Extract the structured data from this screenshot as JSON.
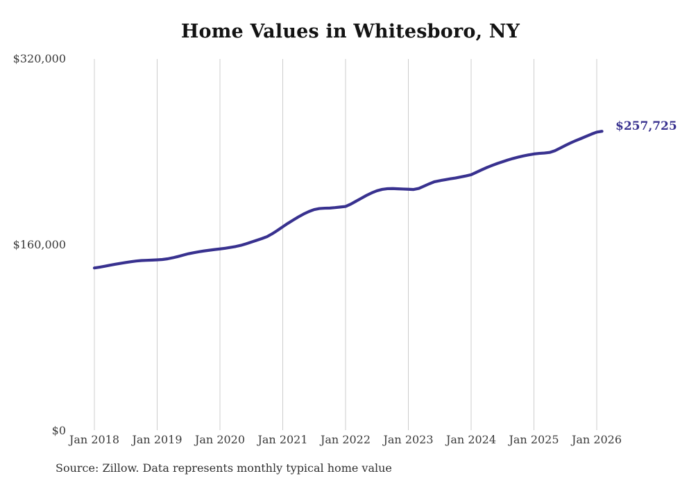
{
  "chart": {
    "title": "Home Values in Whitesboro, NY",
    "end_label": "$257,725",
    "source_note": "Source: Zillow. Data represents monthly typical home value",
    "line_color": "#38318f",
    "end_label_color": "#38318f",
    "grid_color": "#cccccc",
    "title_color": "#131313",
    "axis_label_color": "#3a3a3a",
    "background_color": "#ffffff"
  },
  "chart_data": {
    "type": "line",
    "title": "Home Values in Whitesboro, NY",
    "xlabel": "",
    "ylabel": "",
    "ylim": [
      0,
      320000
    ],
    "y_ticks": [
      0,
      160000,
      320000
    ],
    "y_tick_labels": [
      "$0",
      "$160,000",
      "$320,000"
    ],
    "x_tick_labels": [
      "Jan 2018",
      "Jan 2019",
      "Jan 2020",
      "Jan 2021",
      "Jan 2022",
      "Jan 2023",
      "Jan 2024",
      "Jan 2025",
      "Jan 2026"
    ],
    "grid": "vertical-only",
    "legend": "none",
    "series_name": "Typical home value (monthly)",
    "annotation": {
      "text": "$257,725",
      "x": "2026-02",
      "value": 257725
    },
    "x": [
      "2018-01",
      "2018-02",
      "2018-03",
      "2018-04",
      "2018-05",
      "2018-06",
      "2018-07",
      "2018-08",
      "2018-09",
      "2018-10",
      "2018-11",
      "2018-12",
      "2019-01",
      "2019-02",
      "2019-03",
      "2019-04",
      "2019-05",
      "2019-06",
      "2019-07",
      "2019-08",
      "2019-09",
      "2019-10",
      "2019-11",
      "2019-12",
      "2020-01",
      "2020-02",
      "2020-03",
      "2020-04",
      "2020-05",
      "2020-06",
      "2020-07",
      "2020-08",
      "2020-09",
      "2020-10",
      "2020-11",
      "2020-12",
      "2021-01",
      "2021-02",
      "2021-03",
      "2021-04",
      "2021-05",
      "2021-06",
      "2021-07",
      "2021-08",
      "2021-09",
      "2021-10",
      "2021-11",
      "2021-12",
      "2022-01",
      "2022-02",
      "2022-03",
      "2022-04",
      "2022-05",
      "2022-06",
      "2022-07",
      "2022-08",
      "2022-09",
      "2022-10",
      "2022-11",
      "2022-12",
      "2023-01",
      "2023-02",
      "2023-03",
      "2023-04",
      "2023-05",
      "2023-06",
      "2023-07",
      "2023-08",
      "2023-09",
      "2023-10",
      "2023-11",
      "2023-12",
      "2024-01",
      "2024-02",
      "2024-03",
      "2024-04",
      "2024-05",
      "2024-06",
      "2024-07",
      "2024-08",
      "2024-09",
      "2024-10",
      "2024-11",
      "2024-12",
      "2025-01",
      "2025-02",
      "2025-03",
      "2025-04",
      "2025-05",
      "2025-06",
      "2025-07",
      "2025-08",
      "2025-09",
      "2025-10",
      "2025-11",
      "2025-12",
      "2026-01",
      "2026-02"
    ],
    "values": [
      140000,
      140700,
      141500,
      142400,
      143200,
      144000,
      144700,
      145400,
      146000,
      146400,
      146600,
      146800,
      147000,
      147300,
      147900,
      148800,
      149900,
      151100,
      152300,
      153200,
      154000,
      154700,
      155300,
      155900,
      156400,
      157000,
      157700,
      158500,
      159500,
      160800,
      162300,
      163800,
      165300,
      167000,
      169500,
      172400,
      175500,
      178500,
      181300,
      184000,
      186500,
      188600,
      190300,
      191200,
      191500,
      191600,
      192000,
      192500,
      193000,
      195000,
      197500,
      200000,
      202500,
      204700,
      206500,
      207700,
      208300,
      208400,
      208200,
      208000,
      207800,
      207600,
      208500,
      210500,
      212500,
      214300,
      215200,
      216000,
      216800,
      217500,
      218400,
      219300,
      220300,
      222400,
      224500,
      226500,
      228300,
      230000,
      231500,
      233000,
      234300,
      235500,
      236500,
      237400,
      238200,
      238700,
      239000,
      239500,
      241000,
      243200,
      245500,
      247700,
      249700,
      251500,
      253400,
      255300,
      257000,
      257725
    ]
  }
}
